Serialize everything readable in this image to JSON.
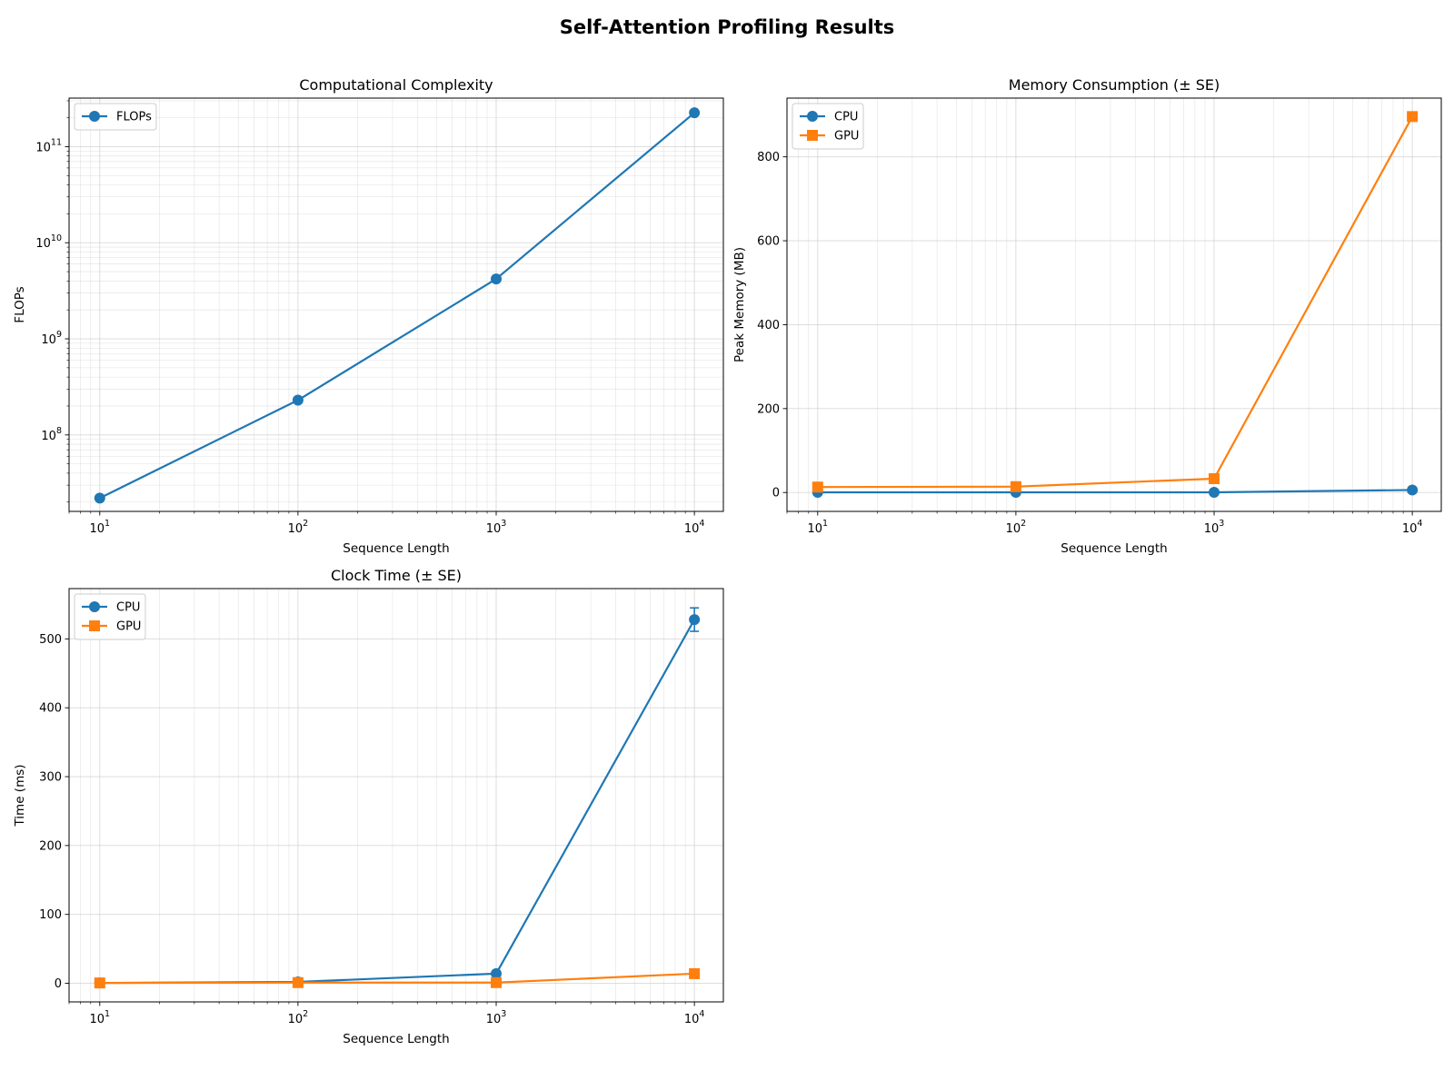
{
  "figure": {
    "title": "Self-Attention Profiling Results"
  },
  "chart_data": [
    {
      "id": "complexity",
      "type": "line",
      "title": "Computational Complexity",
      "xlabel": "Sequence Length",
      "ylabel": "FLOPs",
      "xscale": "log",
      "yscale": "log",
      "xlim": [
        7,
        14000
      ],
      "ylim": [
        16000000,
        320000000000
      ],
      "xticks": [
        10,
        100,
        1000,
        10000
      ],
      "yticks": [
        100000000,
        1000000000,
        10000000000,
        100000000000
      ],
      "grid": true,
      "legend": "top-left",
      "x": [
        10,
        100,
        1000,
        10000
      ],
      "series": [
        {
          "name": "FLOPs",
          "color": "#1f77b4",
          "marker": "circle",
          "values": [
            22000000,
            230000000,
            4200000000,
            225000000000
          ]
        }
      ]
    },
    {
      "id": "memory",
      "type": "line",
      "title": "Memory Consumption (± SE)",
      "xlabel": "Sequence Length",
      "ylabel": "Peak Memory (MB)",
      "xscale": "log",
      "yscale": "linear",
      "xlim": [
        7,
        14000
      ],
      "ylim": [
        -45,
        940
      ],
      "xticks": [
        10,
        100,
        1000,
        10000
      ],
      "yticks": [
        0,
        200,
        400,
        600,
        800
      ],
      "grid": true,
      "legend": "top-left",
      "x": [
        10,
        100,
        1000,
        10000
      ],
      "series": [
        {
          "name": "CPU",
          "color": "#1f77b4",
          "marker": "circle",
          "values": [
            0.5,
            0.5,
            0.5,
            6
          ]
        },
        {
          "name": "GPU",
          "color": "#ff7f0e",
          "marker": "square",
          "values": [
            13,
            14,
            33,
            896
          ]
        }
      ]
    },
    {
      "id": "clock",
      "type": "line",
      "title": "Clock Time (± SE)",
      "xlabel": "Sequence Length",
      "ylabel": "Time (ms)",
      "xscale": "log",
      "yscale": "linear",
      "xlim": [
        7,
        14000
      ],
      "ylim": [
        -27,
        573
      ],
      "xticks": [
        10,
        100,
        1000,
        10000
      ],
      "yticks": [
        0,
        100,
        200,
        300,
        400,
        500
      ],
      "grid": true,
      "legend": "top-left",
      "x": [
        10,
        100,
        1000,
        10000
      ],
      "series": [
        {
          "name": "CPU",
          "color": "#1f77b4",
          "marker": "circle",
          "values": [
            0.5,
            2,
            14,
            528
          ],
          "errors": [
            0,
            0,
            0,
            17
          ]
        },
        {
          "name": "GPU",
          "color": "#ff7f0e",
          "marker": "square",
          "values": [
            0.5,
            1,
            1,
            14
          ]
        }
      ]
    }
  ]
}
